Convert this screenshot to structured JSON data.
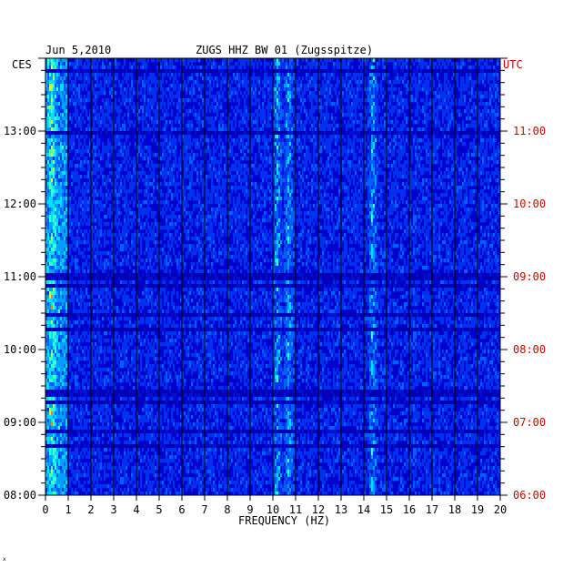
{
  "chart_data": {
    "type": "heatmap",
    "date": "Jun 5,2010",
    "title": "ZUGS HHZ BW 01 (Zugsspitze)",
    "xlabel": "FREQUENCY (HZ)",
    "xlim": [
      0,
      20
    ],
    "x_ticks": [
      "0",
      "1",
      "2",
      "3",
      "4",
      "5",
      "6",
      "7",
      "8",
      "9",
      "10",
      "11",
      "12",
      "13",
      "14",
      "15",
      "16",
      "17",
      "18",
      "19",
      "20"
    ],
    "left_axis_label": "CES",
    "right_axis_label": "UTC",
    "left_ticks": [
      "08:00",
      "09:00",
      "10:00",
      "11:00",
      "12:00",
      "13:00"
    ],
    "right_ticks": [
      "06:00",
      "07:00",
      "08:00",
      "09:00",
      "10:00",
      "11:00"
    ],
    "time_range_hours_local": [
      8.0,
      14.0
    ],
    "colors": {
      "background_dark": "#00008b",
      "base": "#0022cc",
      "accent_right": "#cc0000",
      "grid": "#000000"
    },
    "persistent_bands_hz": [
      0.3,
      10.2,
      10.7,
      14.4
    ],
    "grid": true
  },
  "footer_mark": "x"
}
